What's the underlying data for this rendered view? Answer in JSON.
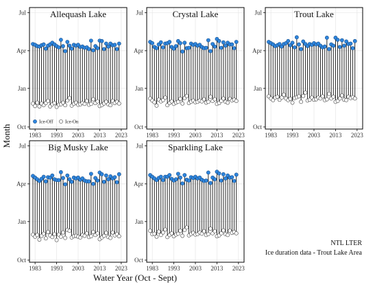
{
  "chart_data": {
    "type": "scatter",
    "style": "dumbbell / lollipop (ice-on to ice-off segments)",
    "xlabel": "Water Year (Oct - Sept)",
    "ylabel": "Month",
    "x_ticks": [
      "1983",
      "1993",
      "2003",
      "2013",
      "2023"
    ],
    "y_ticks": [
      "Jul",
      "Apr",
      "Jan",
      "Oct"
    ],
    "xlim": [
      1982,
      2024
    ],
    "ylim_days_from_oct1": [
      -5,
      285
    ],
    "grid": true,
    "legend": {
      "placement": "bottom-left of first panel",
      "entries": [
        {
          "label": "Ice-Off",
          "color": "#2e86de"
        },
        {
          "label": "Ice-On",
          "color": "#ffffff"
        }
      ]
    },
    "note_lines": [
      "NTL LTER",
      "Ice duration data - Trout Lake Area"
    ],
    "panels": [
      {
        "title": "Allequash Lake",
        "years": [
          1982,
          1983,
          1984,
          1985,
          1986,
          1987,
          1988,
          1989,
          1990,
          1991,
          1992,
          1993,
          1994,
          1995,
          1996,
          1997,
          1998,
          1999,
          2000,
          2001,
          2002,
          2003,
          2004,
          2005,
          2006,
          2007,
          2008,
          2009,
          2010,
          2011,
          2012,
          2013,
          2014,
          2015,
          2016,
          2017,
          2018,
          2019,
          2020,
          2021,
          2022
        ],
        "ice_on_days_from_oct1": [
          56,
          50,
          58,
          49,
          56,
          52,
          57,
          62,
          49,
          54,
          57,
          48,
          53,
          54,
          58,
          52,
          63,
          69,
          51,
          55,
          58,
          53,
          54,
          57,
          55,
          62,
          53,
          55,
          66,
          57,
          61,
          50,
          52,
          56,
          60,
          54,
          52,
          62,
          57,
          60,
          56
        ],
        "ice_off_days_from_oct1": [
          198,
          196,
          193,
          192,
          195,
          197,
          187,
          194,
          197,
          201,
          197,
          193,
          190,
          208,
          193,
          181,
          203,
          194,
          187,
          196,
          194,
          196,
          191,
          192,
          189,
          190,
          186,
          206,
          183,
          193,
          188,
          206,
          205,
          186,
          199,
          192,
          199,
          195,
          196,
          186,
          199
        ]
      },
      {
        "title": "Crystal Lake",
        "years": [
          1982,
          1983,
          1984,
          1985,
          1986,
          1987,
          1988,
          1989,
          1990,
          1991,
          1992,
          1993,
          1994,
          1995,
          1996,
          1997,
          1998,
          1999,
          2000,
          2001,
          2002,
          2003,
          2004,
          2005,
          2006,
          2007,
          2008,
          2009,
          2010,
          2011,
          2012,
          2013,
          2014,
          2015,
          2016,
          2017,
          2018,
          2019,
          2020,
          2021,
          2022
        ],
        "ice_on_days_from_oct1": [
          68,
          63,
          59,
          51,
          65,
          61,
          64,
          70,
          52,
          57,
          61,
          55,
          58,
          60,
          67,
          56,
          69,
          74,
          57,
          60,
          63,
          59,
          60,
          63,
          61,
          66,
          58,
          60,
          72,
          62,
          66,
          55,
          57,
          62,
          68,
          60,
          58,
          67,
          63,
          65,
          62
        ],
        "ice_off_days_from_oct1": [
          203,
          200,
          191,
          188,
          197,
          202,
          190,
          199,
          200,
          203,
          191,
          187,
          193,
          205,
          200,
          180,
          201,
          188,
          189,
          199,
          196,
          198,
          194,
          196,
          191,
          188,
          189,
          207,
          181,
          198,
          192,
          210,
          205,
          189,
          202,
          194,
          201,
          197,
          197,
          188,
          203
        ]
      },
      {
        "title": "Trout Lake",
        "years": [
          1982,
          1983,
          1984,
          1985,
          1986,
          1987,
          1988,
          1989,
          1990,
          1991,
          1992,
          1993,
          1994,
          1995,
          1996,
          1997,
          1998,
          1999,
          2000,
          2001,
          2002,
          2003,
          2004,
          2005,
          2006,
          2007,
          2008,
          2009,
          2010,
          2011,
          2012,
          2013,
          2014,
          2015,
          2016,
          2017,
          2018,
          2019,
          2020,
          2021,
          2022
        ],
        "ice_on_days_from_oct1": [
          73,
          68,
          64,
          70,
          72,
          65,
          70,
          77,
          68,
          64,
          67,
          58,
          69,
          71,
          73,
          60,
          74,
          82,
          63,
          65,
          70,
          65,
          66,
          70,
          68,
          73,
          64,
          66,
          79,
          68,
          72,
          60,
          62,
          68,
          75,
          65,
          64,
          72,
          69,
          71,
          68
        ],
        "ice_off_days_from_oct1": [
          203,
          200,
          197,
          193,
          195,
          198,
          192,
          198,
          200,
          205,
          195,
          201,
          190,
          214,
          197,
          186,
          204,
          198,
          193,
          198,
          196,
          200,
          197,
          199,
          194,
          190,
          192,
          213,
          186,
          197,
          194,
          213,
          208,
          191,
          207,
          194,
          204,
          198,
          199,
          188,
          205
        ]
      },
      {
        "title": "Big Musky Lake",
        "years": [
          1982,
          1983,
          1984,
          1985,
          1986,
          1987,
          1988,
          1989,
          1990,
          1991,
          1992,
          1993,
          1994,
          1995,
          1996,
          1997,
          1998,
          1999,
          2000,
          2001,
          2002,
          2003,
          2004,
          2005,
          2006,
          2007,
          2008,
          2009,
          2010,
          2011,
          2012,
          2013,
          2014,
          2015,
          2016,
          2017,
          2018,
          2019,
          2020,
          2021,
          2022
        ],
        "ice_on_days_from_oct1": [
          61,
          56,
          60,
          49,
          58,
          63,
          52,
          67,
          59,
          55,
          62,
          48,
          61,
          56,
          66,
          53,
          72,
          70,
          54,
          57,
          58,
          56,
          54,
          60,
          58,
          64,
          55,
          57,
          67,
          60,
          64,
          50,
          54,
          58,
          65,
          55,
          53,
          66,
          59,
          62,
          57
        ],
        "ice_off_days_from_oct1": [
          201,
          197,
          193,
          189,
          194,
          199,
          188,
          198,
          197,
          202,
          193,
          191,
          191,
          210,
          196,
          181,
          202,
          193,
          187,
          197,
          195,
          197,
          192,
          195,
          190,
          188,
          188,
          206,
          182,
          196,
          190,
          209,
          205,
          187,
          202,
          193,
          200,
          195,
          198,
          186,
          205
        ]
      },
      {
        "title": "Sparkling Lake",
        "years": [
          1982,
          1983,
          1984,
          1985,
          1986,
          1987,
          1988,
          1989,
          1990,
          1991,
          1992,
          1993,
          1994,
          1995,
          1996,
          1997,
          1998,
          1999,
          2000,
          2001,
          2002,
          2003,
          2004,
          2005,
          2006,
          2007,
          2008,
          2009,
          2010,
          2011,
          2012,
          2013,
          2014,
          2015,
          2016,
          2017,
          2018,
          2019,
          2020,
          2021,
          2022
        ],
        "ice_on_days_from_oct1": [
          70,
          62,
          63,
          56,
          68,
          60,
          66,
          73,
          55,
          60,
          64,
          57,
          61,
          63,
          70,
          58,
          72,
          78,
          59,
          62,
          65,
          61,
          62,
          66,
          63,
          69,
          60,
          62,
          75,
          64,
          69,
          57,
          59,
          64,
          71,
          62,
          60,
          70,
          65,
          67,
          64
        ],
        "ice_off_days_from_oct1": [
          203,
          199,
          195,
          191,
          196,
          199,
          191,
          199,
          199,
          203,
          194,
          190,
          193,
          206,
          197,
          183,
          203,
          192,
          190,
          198,
          196,
          199,
          195,
          197,
          192,
          189,
          190,
          209,
          184,
          197,
          193,
          211,
          207,
          190,
          205,
          195,
          202,
          197,
          198,
          189,
          204
        ]
      }
    ]
  }
}
